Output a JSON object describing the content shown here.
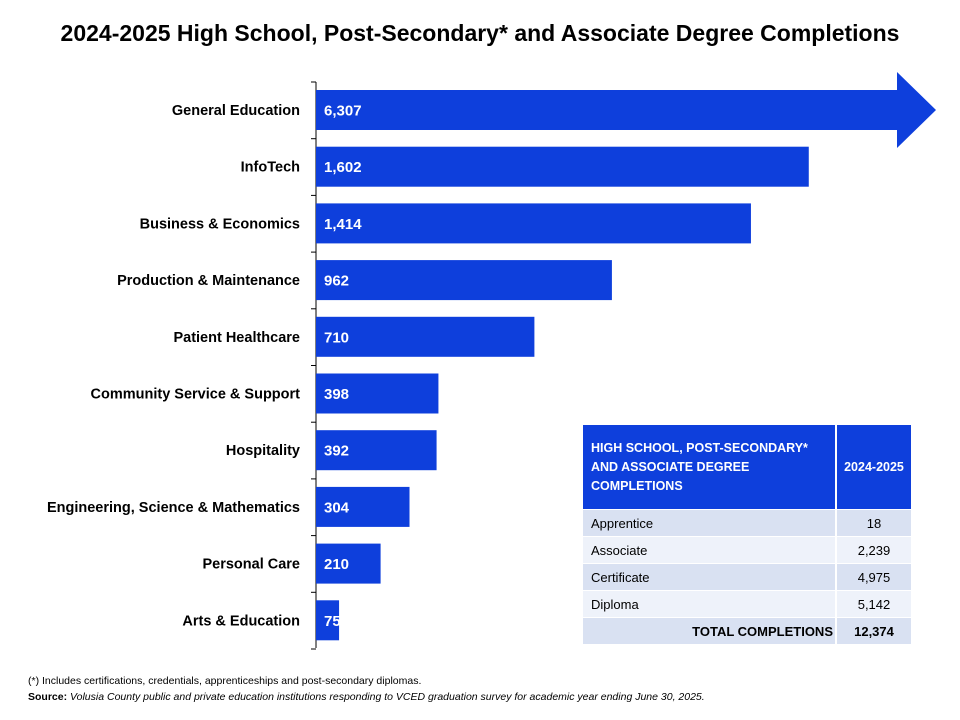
{
  "title": "2024-2025 High School, Post-Secondary* and Associate Degree Completions",
  "colors": {
    "bar": "#0e3fdc",
    "table_header": "#0e3fdc",
    "table_row_odd": "#d9e1f2",
    "table_row_even": "#eef2fa"
  },
  "chart_data": {
    "type": "bar",
    "orientation": "horizontal",
    "title": "2024-2025 High School, Post-Secondary* and Associate Degree Completions",
    "categories": [
      "General Education",
      "InfoTech",
      "Business & Economics",
      "Production & Maintenance",
      "Patient Healthcare",
      "Community Service & Support",
      "Hospitality",
      "Engineering, Science & Mathematics",
      "Personal Care",
      "Arts & Education"
    ],
    "values": [
      6307,
      1602,
      1414,
      962,
      710,
      398,
      392,
      304,
      210,
      75
    ],
    "data_labels": [
      "6,307",
      "1,602",
      "1,414",
      "962",
      "710",
      "398",
      "392",
      "304",
      "210",
      "75"
    ],
    "first_bar_style": "arrow extending past axis (truncated scale)",
    "grid": false,
    "legend": "none"
  },
  "table": {
    "header": "HIGH SCHOOL, POST-SECONDARY* AND ASSOCIATE DEGREE COMPLETIONS",
    "year": "2024-2025",
    "rows": [
      {
        "label": "Apprentice",
        "value": "18"
      },
      {
        "label": "Associate",
        "value": "2,239"
      },
      {
        "label": "Certificate",
        "value": "4,975"
      },
      {
        "label": "Diploma",
        "value": "5,142"
      }
    ],
    "total_label": "TOTAL COMPLETIONS",
    "total_value": "12,374"
  },
  "footnote": {
    "asterisk": "(*) Includes certifications, credentials, apprenticeships and post-secondary diplomas.",
    "source_label": "Source:",
    "source_text": "Volusia County public and private education institutions responding to VCED graduation survey for academic year ending June 30, 2025."
  }
}
